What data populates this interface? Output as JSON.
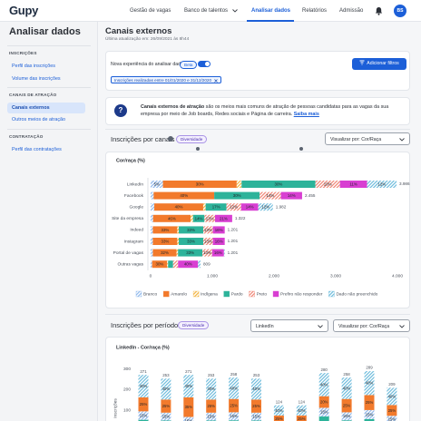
{
  "header": {
    "logo": "Gupy",
    "nav": [
      "Gestão de vagas",
      "Banco de talentos",
      "Analisar dados",
      "Relatórios",
      "Admissão"
    ],
    "avatar": "BS"
  },
  "sidebar": {
    "title": "Analisar dados",
    "sections": [
      {
        "heading": "INSCRIÇÕES",
        "items": [
          "Perfil das inscrições",
          "Volume das inscrições"
        ]
      },
      {
        "heading": "CANAIS DE ATRAÇÃO",
        "items": [
          "Canais externos",
          "Outros meios de atração"
        ]
      },
      {
        "heading": "CONTRATAÇÃO",
        "items": [
          "Perfil das contratações"
        ]
      }
    ]
  },
  "page": {
    "title": "Canais externos",
    "updated": "Última atualização em: 26/09/2021 às 8h44"
  },
  "filters": {
    "toggle_label": "Nova experiência do analisar dados",
    "badge": "Beta",
    "button": "Adicionar filtros",
    "chip": "Inscrições realizadas entre 01/01/2020 e 31/12/2020"
  },
  "info": {
    "bold": "Canais externos de atração",
    "text": "são os meios mais comuns de atração de pessoas candidatas para as vagas da sua empresa por meio de Job boards, Redes sociais e Página de carreira.",
    "link": "Saiba mais"
  },
  "sections": [
    {
      "title": "Inscrições por canais",
      "tag": "Diversidade",
      "selects": [
        "Visualizar por: Cor/Raça"
      ]
    },
    {
      "title": "Inscrições por período",
      "tag": "Diversidade",
      "selects": [
        "LinkedIn",
        "Visualizar por: Cor/Raça"
      ]
    }
  ],
  "chart_data": [
    {
      "type": "bar",
      "orientation": "horizontal",
      "stacked": true,
      "legend": "bottom",
      "title": "Cor/raça (%)",
      "categories": [
        "LinkedIn",
        "Facebook",
        "Google",
        "Site da empresa",
        "Indeed",
        "Instagram",
        "Portal de vagas",
        "Outras vagas"
      ],
      "series": [
        {
          "name": "Branco",
          "color": "#8fb8ec",
          "pattern": true,
          "values": [
            5,
            2,
            3,
            3,
            3,
            3,
            3,
            3
          ],
          "value_labels": [
            "5%",
            null,
            null,
            null,
            null,
            null,
            null,
            null
          ]
        },
        {
          "name": "Amarelo",
          "color": "#f27a2c",
          "pattern": false,
          "values": [
            30,
            40,
            40,
            46,
            33,
            33,
            32,
            30
          ],
          "value_labels": [
            "30%",
            "40%",
            "40%",
            "46%",
            "33%",
            "33%",
            "32%",
            "30%"
          ]
        },
        {
          "name": "Indígena",
          "color": "#f2b440",
          "pattern": true,
          "values": [
            2,
            0,
            2,
            3,
            2,
            2,
            2,
            2
          ],
          "value_labels": [
            null,
            null,
            null,
            null,
            null,
            null,
            null,
            null
          ]
        },
        {
          "name": "Pardo",
          "color": "#2db39a",
          "pattern": false,
          "values": [
            30,
            30,
            17,
            14,
            33,
            33,
            33,
            10
          ],
          "value_labels": [
            "30%",
            "30%",
            "17%",
            "14%",
            "33%",
            "33%",
            "33%",
            null
          ]
        },
        {
          "name": "Preto",
          "color": "#ef8474",
          "pattern": true,
          "values": [
            10,
            14,
            12,
            13,
            13,
            13,
            13,
            10
          ],
          "value_labels": [
            "10%",
            "14%",
            "12%",
            "13%",
            "13%",
            "13%",
            "13%",
            null
          ]
        },
        {
          "name": "Prefiro não responder",
          "color": "#d83fd2",
          "pattern": false,
          "values": [
            11,
            14,
            14,
            21,
            16,
            16,
            16,
            40
          ],
          "value_labels": [
            "11%",
            "14%",
            "14%",
            "21%",
            "16%",
            "16%",
            "16%",
            "40%"
          ]
        },
        {
          "name": "Dado não preenchido",
          "color": "#6fbcdc",
          "pattern": true,
          "values": [
            12,
            0,
            12,
            0,
            0,
            0,
            1,
            5
          ],
          "value_labels": [
            "12%",
            null,
            "12%",
            null,
            null,
            null,
            null,
            null
          ]
        }
      ],
      "totals": {
        "values": [
          3986,
          2455,
          1982,
          1322,
          1201,
          1201,
          1201,
          809
        ],
        "value_labels": [
          "3.986",
          "2.455",
          "1.982",
          "1.322",
          "1.201",
          "1.201",
          "1.201",
          "809"
        ]
      },
      "xlim": [
        0,
        4000
      ],
      "xticks": [
        0,
        {
          "value": 1000,
          "label": "1.000"
        },
        {
          "value": 2000,
          "label": "2.000"
        },
        {
          "value": 3000,
          "label": "3.000"
        },
        {
          "value": 4000,
          "label": "4.000"
        }
      ]
    },
    {
      "type": "bar",
      "orientation": "vertical",
      "stacked": true,
      "title": "LinkedIn - Cor/raça (%)",
      "y_label": "Inscrições",
      "series": [
        {
          "color": "#2db39a",
          "pattern": false,
          "values": [
            20,
            20,
            10,
            20,
            20,
            20,
            20,
            20,
            25,
            20,
            20,
            20
          ],
          "value_labels": [
            null,
            null,
            null,
            null,
            null,
            null,
            null,
            null,
            null,
            null,
            null,
            null
          ]
        },
        {
          "color": "#8fb8ec",
          "pattern": true,
          "values": [
            15,
            15,
            15,
            15,
            15,
            15,
            15,
            15,
            15,
            15,
            15,
            15
          ],
          "value_labels": [
            "15%",
            "15%",
            "15%",
            "15%",
            "15%",
            "15%",
            null,
            null,
            "15%",
            "15%",
            "15%",
            "15%"
          ]
        },
        {
          "color": "#f27a2c",
          "pattern": false,
          "values": [
            25,
            25,
            35,
            25,
            25,
            25,
            25,
            25,
            20,
            25,
            25,
            25
          ],
          "value_labels": [
            "25%",
            "25%",
            "35%",
            "25%",
            "25%",
            "25%",
            "25%",
            "25%",
            "20%",
            "25%",
            "25%",
            "25%"
          ]
        },
        {
          "color": "#6fbcdc",
          "pattern": true,
          "values": [
            40,
            40,
            40,
            40,
            40,
            40,
            40,
            40,
            40,
            40,
            40,
            40
          ],
          "value_labels": [
            "40%",
            "40%",
            "40%",
            "40%",
            "40%",
            "40%",
            "40%",
            "40%",
            "40%",
            "40%",
            "40%",
            "40%"
          ]
        }
      ],
      "totals": {
        "values": [
          271,
          253,
          271,
          253,
          258,
          253,
          124,
          124,
          280,
          258,
          289,
          209
        ]
      },
      "ylim": [
        0,
        320
      ],
      "yticks": [
        100,
        200,
        300
      ]
    }
  ]
}
